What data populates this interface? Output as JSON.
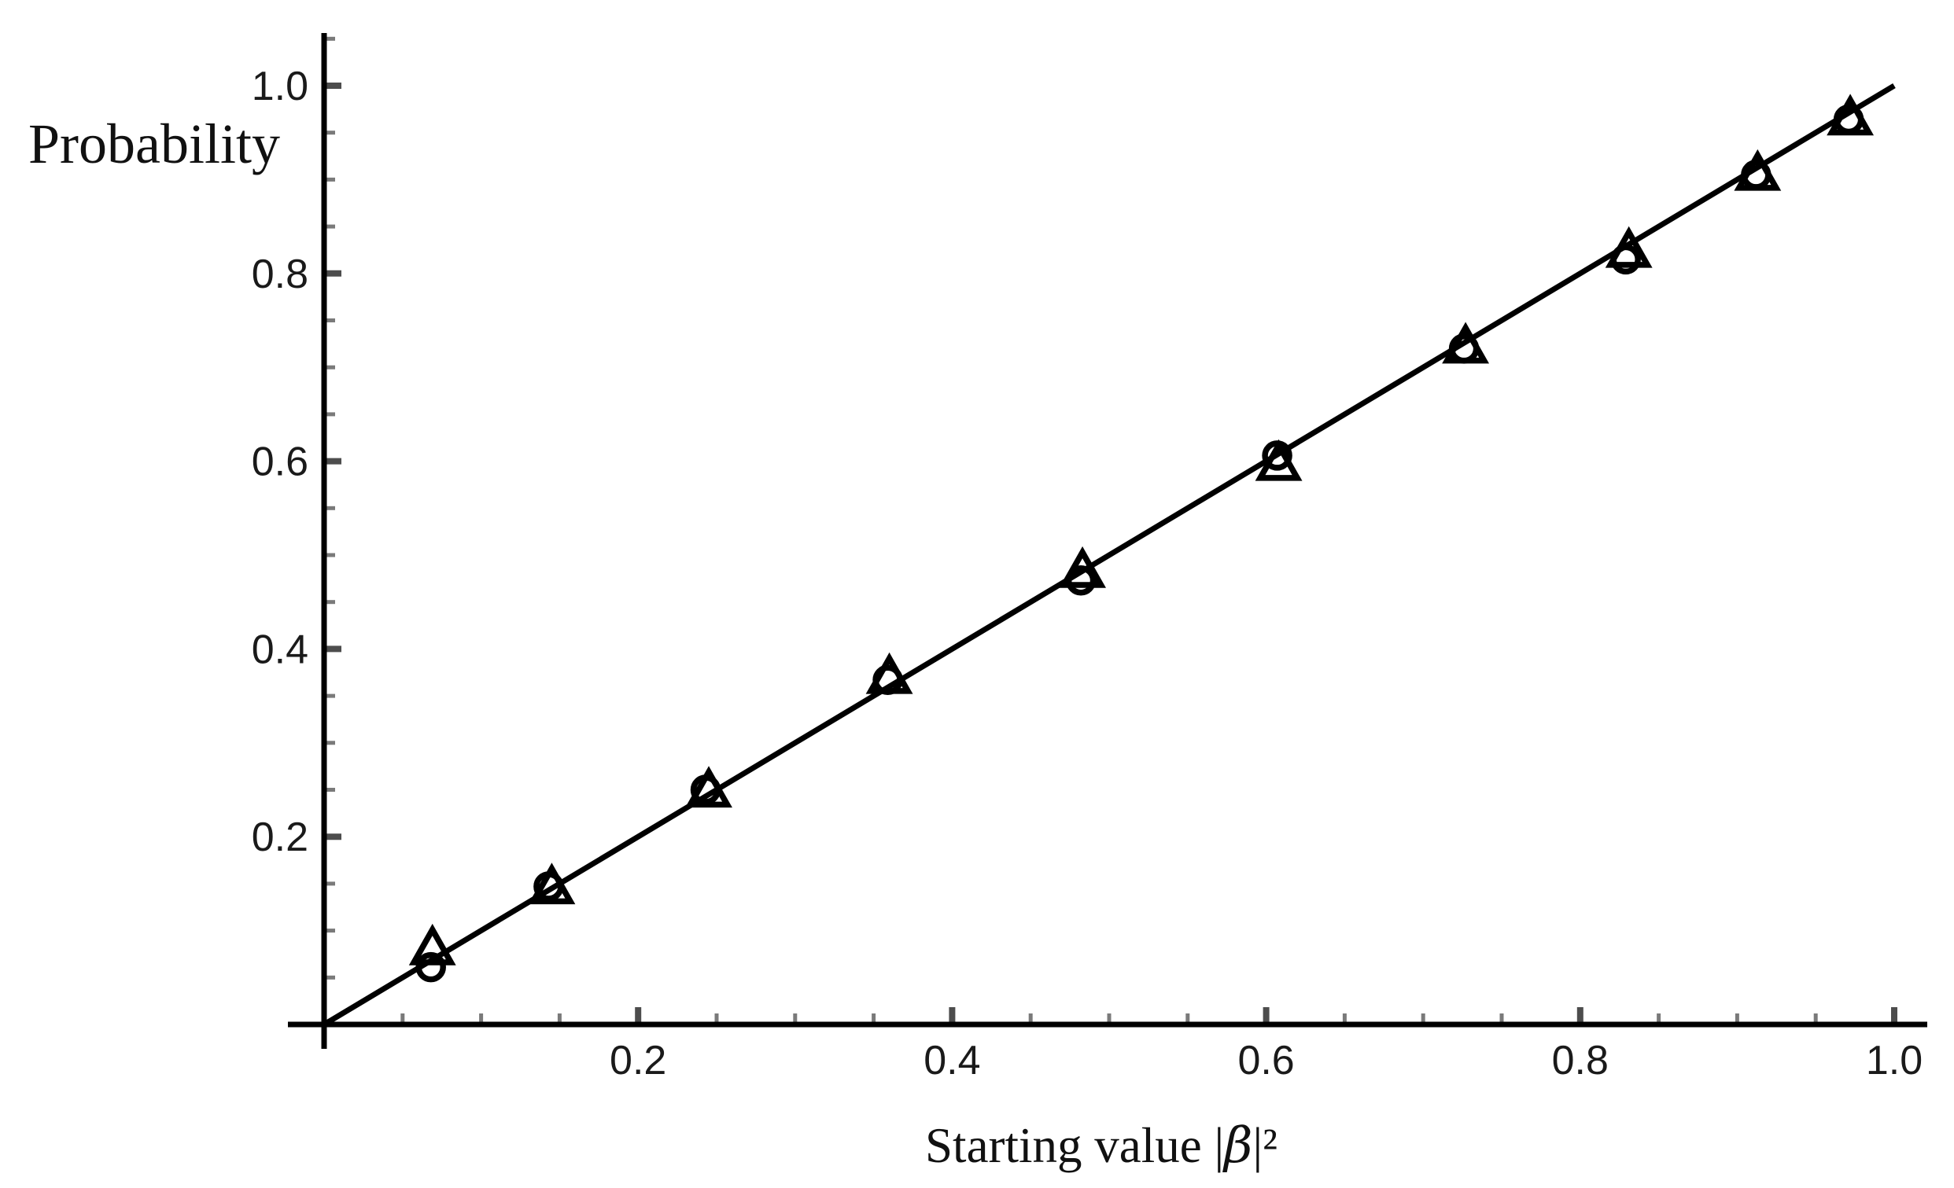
{
  "page": {
    "background": "#ffffff"
  },
  "chart_data": {
    "type": "scatter",
    "title": "",
    "xlabel": "Starting value |β|²",
    "xlabel_parts": {
      "prefix": "Starting value |",
      "symbol": "β",
      "suffix": "|²"
    },
    "ylabel": "Probability",
    "xlim": [
      0,
      1.02
    ],
    "ylim": [
      0,
      1.06
    ],
    "grid": false,
    "legend": false,
    "x_axis": {
      "major_ticks": [
        0.2,
        0.4,
        0.6,
        0.8,
        1.0
      ],
      "major_tick_labels": [
        "0.2",
        "0.4",
        "0.6",
        "0.8",
        "1.0"
      ],
      "minor_ticks": [
        0.05,
        0.1,
        0.15,
        0.25,
        0.3,
        0.35,
        0.45,
        0.5,
        0.55,
        0.65,
        0.7,
        0.75,
        0.85,
        0.9,
        0.95
      ]
    },
    "y_axis": {
      "major_ticks": [
        0.2,
        0.4,
        0.6,
        0.8,
        1.0
      ],
      "major_tick_labels": [
        "0.2",
        "0.4",
        "0.6",
        "0.8",
        "1.0"
      ],
      "minor_ticks": [
        0.05,
        0.1,
        0.15,
        0.25,
        0.3,
        0.35,
        0.45,
        0.5,
        0.55,
        0.65,
        0.7,
        0.75,
        0.85,
        0.9,
        0.95,
        1.05
      ]
    },
    "reference_line": {
      "equation": "y = x",
      "x_range": [
        0,
        1.0
      ]
    },
    "series": [
      {
        "name": "circle-markers",
        "marker": "circle",
        "points": [
          [
            0.068,
            0.061
          ],
          [
            0.143,
            0.147
          ],
          [
            0.243,
            0.25
          ],
          [
            0.359,
            0.367
          ],
          [
            0.482,
            0.473
          ],
          [
            0.607,
            0.606
          ],
          [
            0.726,
            0.72
          ],
          [
            0.829,
            0.815
          ],
          [
            0.912,
            0.905
          ],
          [
            0.971,
            0.964
          ]
        ]
      },
      {
        "name": "triangle-markers",
        "marker": "triangle",
        "points": [
          [
            0.069,
            0.08
          ],
          [
            0.145,
            0.145
          ],
          [
            0.245,
            0.248
          ],
          [
            0.36,
            0.369
          ],
          [
            0.483,
            0.482
          ],
          [
            0.608,
            0.596
          ],
          [
            0.727,
            0.721
          ],
          [
            0.831,
            0.823
          ],
          [
            0.913,
            0.905
          ],
          [
            0.972,
            0.964
          ]
        ]
      }
    ],
    "style": {
      "axis_color": "#000000",
      "line_color": "#000000",
      "marker_color": "#000000",
      "tick_major_color": "#4d4d4d",
      "tick_minor_color": "#7a7a7a",
      "tick_label_color": "#1a1a1a"
    }
  }
}
